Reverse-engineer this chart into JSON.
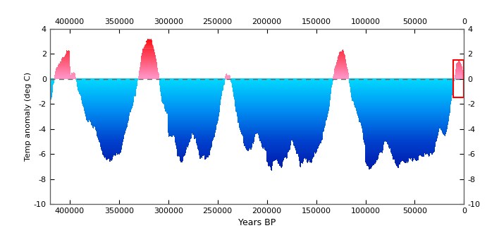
{
  "title": "",
  "xlabel": "Years BP",
  "ylabel": "Temp anomaly (deg C)",
  "xlim": [
    420000,
    0
  ],
  "ylim": [
    -10.0,
    4.0
  ],
  "yticks": [
    -10,
    -8,
    -6,
    -4,
    -2,
    0,
    2,
    4
  ],
  "xticks_top": [
    400000,
    350000,
    300000,
    250000,
    200000,
    150000,
    100000,
    50000,
    0
  ],
  "xticks_bottom": [
    400000,
    350000,
    300000,
    250000,
    200000,
    150000,
    100000,
    50000,
    0
  ],
  "zero_line_color": "#808080",
  "bg_color": "#ffffff",
  "red_box_color": "#ff0000",
  "dpi": 100,
  "figsize": [
    7.08,
    3.4
  ]
}
